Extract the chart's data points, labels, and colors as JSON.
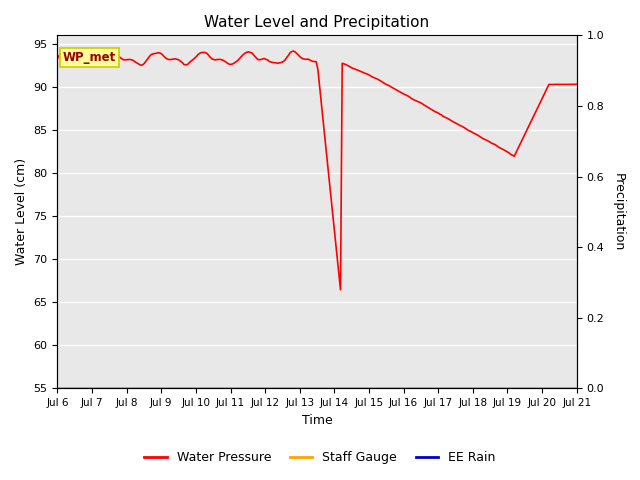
{
  "title": "Water Level and Precipitation",
  "xlabel": "Time",
  "ylabel_left": "Water Level (cm)",
  "ylabel_right": "Precipitation",
  "annotation_text": "WP_met",
  "ylim_left": [
    55,
    96
  ],
  "ylim_right": [
    0.0,
    1.0
  ],
  "yticks_left": [
    55,
    60,
    65,
    70,
    75,
    80,
    85,
    90,
    95
  ],
  "yticks_right": [
    0.0,
    0.2,
    0.4,
    0.6,
    0.8,
    1.0
  ],
  "x_tick_labels": [
    "Jul 6",
    "Jul 7",
    "Jul 8",
    "Jul 9",
    "Jul 10",
    "Jul 11",
    "Jul 12",
    "Jul 13",
    "Jul 14",
    "Jul 15",
    "Jul 16",
    "Jul 17",
    "Jul 18",
    "Jul 19",
    "Jul 20",
    "Jul 21"
  ],
  "water_pressure_color": "#FF0000",
  "staff_gauge_color": "#FFA500",
  "ee_rain_color": "#0000CD",
  "background_color": "#E8E8E8",
  "legend_labels": [
    "Water Pressure",
    "Staff Gauge",
    "EE Rain"
  ],
  "legend_colors": [
    "#FF0000",
    "#FFA500",
    "#0000CD"
  ],
  "annotation_bg": "#FFFF99",
  "annotation_border": "#CCCC00",
  "annotation_text_color": "#990000",
  "figsize": [
    6.4,
    4.8
  ],
  "dpi": 100
}
